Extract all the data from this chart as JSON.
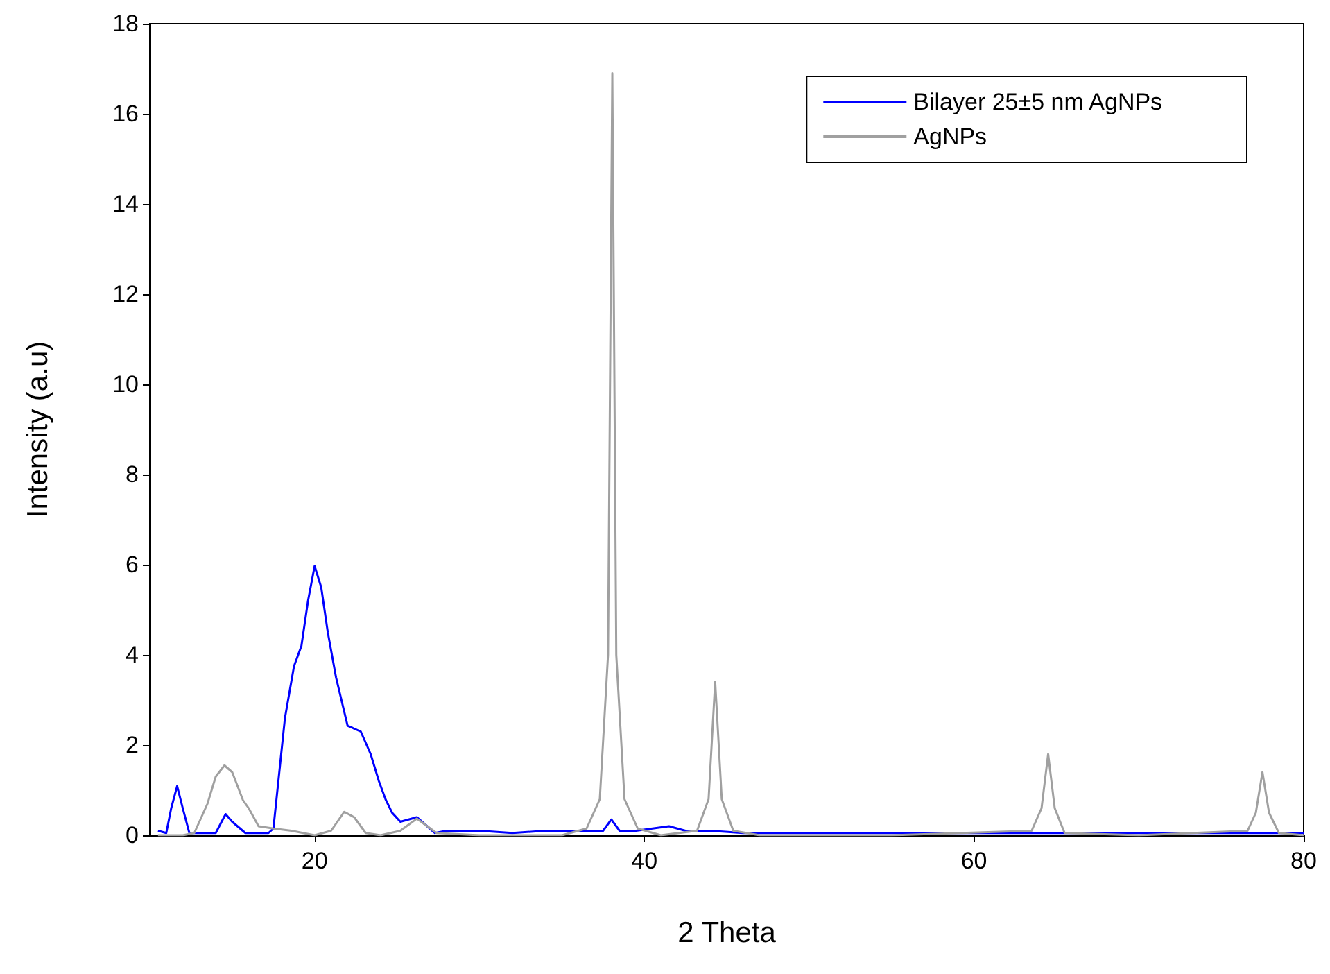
{
  "chart_data": {
    "type": "line",
    "xlabel": "2 Theta",
    "ylabel": "Intensity (a.u)",
    "xlim": [
      10,
      80
    ],
    "xticks": [
      20,
      40,
      60,
      80
    ],
    "ylim": [
      0,
      18
    ],
    "yticks": [
      0,
      2,
      4,
      6,
      8,
      10,
      12,
      14,
      16,
      18
    ],
    "grid": false,
    "legend": "top right",
    "marker": "none",
    "line_style": "solid",
    "series": [
      {
        "name": "Bilayer 25±5 nm AgNPs",
        "color": "#0000ff",
        "x": [
          10.5,
          11.0,
          11.3,
          11.66,
          12.0,
          12.4,
          13.0,
          14.0,
          14.6,
          15.0,
          15.8,
          16.5,
          17.2,
          17.5,
          17.8,
          18.2,
          18.75,
          19.2,
          19.6,
          20.0,
          20.4,
          20.8,
          21.3,
          22.0,
          22.8,
          23.4,
          23.9,
          24.3,
          24.7,
          25.2,
          26.2,
          27.3,
          28.0,
          30.0,
          32.0,
          34.0,
          36.0,
          37.5,
          38.0,
          38.5,
          39.5,
          41.5,
          42.5,
          44.0,
          46.0,
          50.0,
          55.0,
          60.0,
          65.0,
          70.0,
          75.0,
          80.0
        ],
        "values": [
          0.1,
          0.05,
          0.6,
          1.09,
          0.6,
          0.05,
          0.05,
          0.05,
          0.47,
          0.3,
          0.05,
          0.05,
          0.05,
          0.15,
          1.2,
          2.6,
          3.75,
          4.2,
          5.2,
          5.97,
          5.5,
          4.5,
          3.5,
          2.43,
          2.3,
          1.8,
          1.2,
          0.8,
          0.5,
          0.3,
          0.4,
          0.05,
          0.1,
          0.1,
          0.05,
          0.1,
          0.1,
          0.1,
          0.35,
          0.1,
          0.1,
          0.2,
          0.1,
          0.1,
          0.05,
          0.05,
          0.05,
          0.05,
          0.05,
          0.05,
          0.05,
          0.05
        ]
      },
      {
        "name": "AgNPs",
        "color": "#a0a0a0",
        "x": [
          10.5,
          12.0,
          12.7,
          13.5,
          14.0,
          14.53,
          15.0,
          15.65,
          16.0,
          16.6,
          17.5,
          18.6,
          20.0,
          21.0,
          21.8,
          22.4,
          23.1,
          24.0,
          25.2,
          26.2,
          27.4,
          30.0,
          35.0,
          36.5,
          37.3,
          37.8,
          38.06,
          38.3,
          38.8,
          39.6,
          41.0,
          43.2,
          43.9,
          44.3,
          44.7,
          45.4,
          47.0,
          55.0,
          63.5,
          64.1,
          64.5,
          64.9,
          65.5,
          70.0,
          76.6,
          77.1,
          77.5,
          77.9,
          78.5,
          80.0
        ],
        "values": [
          0.0,
          0.0,
          0.05,
          0.7,
          1.3,
          1.55,
          1.4,
          0.78,
          0.6,
          0.2,
          0.15,
          0.1,
          0.0,
          0.1,
          0.52,
          0.4,
          0.05,
          0.0,
          0.1,
          0.37,
          0.05,
          0.0,
          0.0,
          0.15,
          0.8,
          4.0,
          16.9,
          4.0,
          0.8,
          0.15,
          0.0,
          0.1,
          0.8,
          3.4,
          0.8,
          0.1,
          0.0,
          0.0,
          0.1,
          0.6,
          1.8,
          0.6,
          0.05,
          0.0,
          0.1,
          0.5,
          1.4,
          0.5,
          0.05,
          0.0
        ]
      }
    ]
  }
}
